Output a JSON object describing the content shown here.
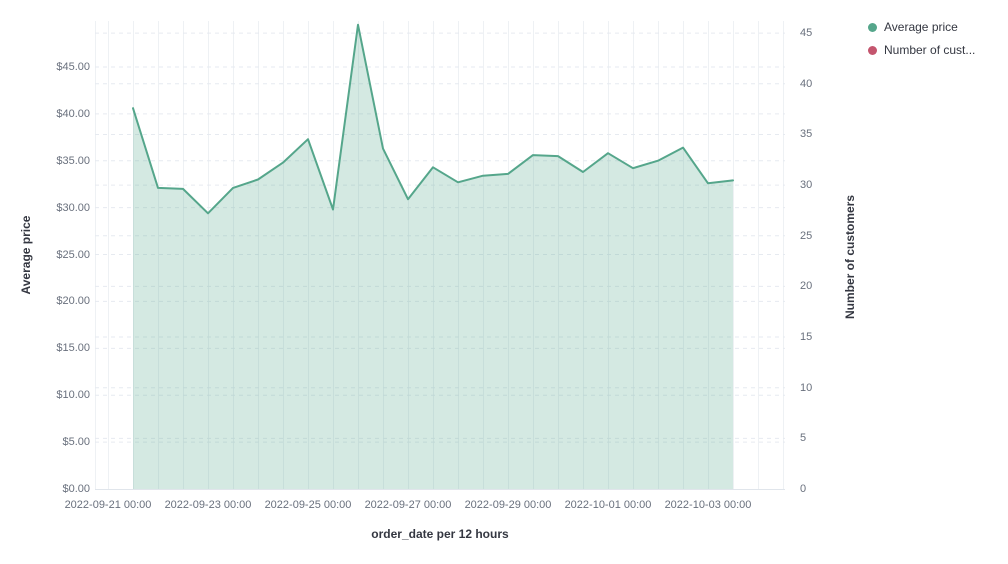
{
  "chart": {
    "left_axis": {
      "title": "Average price",
      "ticks": [
        "$0.00",
        "$5.00",
        "$10.00",
        "$15.00",
        "$20.00",
        "$25.00",
        "$30.00",
        "$35.00",
        "$40.00",
        "$45.00"
      ]
    },
    "right_axis": {
      "title": "Number of customers",
      "ticks": [
        "0",
        "5",
        "10",
        "15",
        "20",
        "25",
        "30",
        "35",
        "40",
        "45"
      ]
    },
    "x_axis": {
      "title": "order_date per 12 hours",
      "ticks": [
        "2022-09-21 00:00",
        "2022-09-23 00:00",
        "2022-09-25 00:00",
        "2022-09-27 00:00",
        "2022-09-29 00:00",
        "2022-10-01 00:00",
        "2022-10-03 00:00"
      ]
    },
    "legend": {
      "items": [
        {
          "label": "Average price",
          "color": "#55A68B"
        },
        {
          "label": "Number of cust...",
          "color": "#C4556E"
        }
      ]
    },
    "colors": {
      "series_line": "#55A68B",
      "series_fill": "rgba(84,166,139,0.25)",
      "grid_dashed": "#E6EAF0",
      "grid_solid": "#EEF1F4",
      "baseline": "#E0E5EB",
      "tick_text": "#69707D",
      "title_text": "#343741"
    }
  },
  "chart_data": {
    "type": "area",
    "title": "",
    "xlabel": "order_date per 12 hours",
    "ylabel_left": "Average price",
    "ylabel_right": "Number of customers",
    "x_interval": "12 hours",
    "x": [
      "2022-09-21 12:00",
      "2022-09-22 00:00",
      "2022-09-22 12:00",
      "2022-09-23 00:00",
      "2022-09-23 12:00",
      "2022-09-24 00:00",
      "2022-09-24 12:00",
      "2022-09-25 00:00",
      "2022-09-25 12:00",
      "2022-09-26 00:00",
      "2022-09-26 12:00",
      "2022-09-27 00:00",
      "2022-09-27 12:00",
      "2022-09-28 00:00",
      "2022-09-28 12:00",
      "2022-09-29 00:00",
      "2022-09-29 12:00",
      "2022-09-30 00:00",
      "2022-09-30 12:00",
      "2022-10-01 00:00",
      "2022-10-01 12:00",
      "2022-10-02 00:00",
      "2022-10-02 12:00",
      "2022-10-03 00:00",
      "2022-10-03 12:00"
    ],
    "series": [
      {
        "name": "Average price",
        "axis": "left",
        "color": "#55A68B",
        "values": [
          40.6,
          32.1,
          32.0,
          29.4,
          32.1,
          33.0,
          34.8,
          37.3,
          29.8,
          49.5,
          36.3,
          30.9,
          34.3,
          32.7,
          33.4,
          33.6,
          35.6,
          35.5,
          33.8,
          35.8,
          34.2,
          35.0,
          36.4,
          32.6,
          32.9
        ]
      },
      {
        "name": "Number of customers",
        "axis": "right",
        "color": "#C4556E",
        "values": []
      }
    ],
    "ylim_left": [
      0,
      49.9
    ],
    "ylim_right": [
      0,
      46.2
    ],
    "left_tick_values": [
      0,
      5,
      10,
      15,
      20,
      25,
      30,
      35,
      40,
      45
    ],
    "right_tick_values": [
      0,
      5,
      10,
      15,
      20,
      25,
      30,
      35,
      40,
      45
    ],
    "grid": true,
    "legend_position": "top-right"
  }
}
